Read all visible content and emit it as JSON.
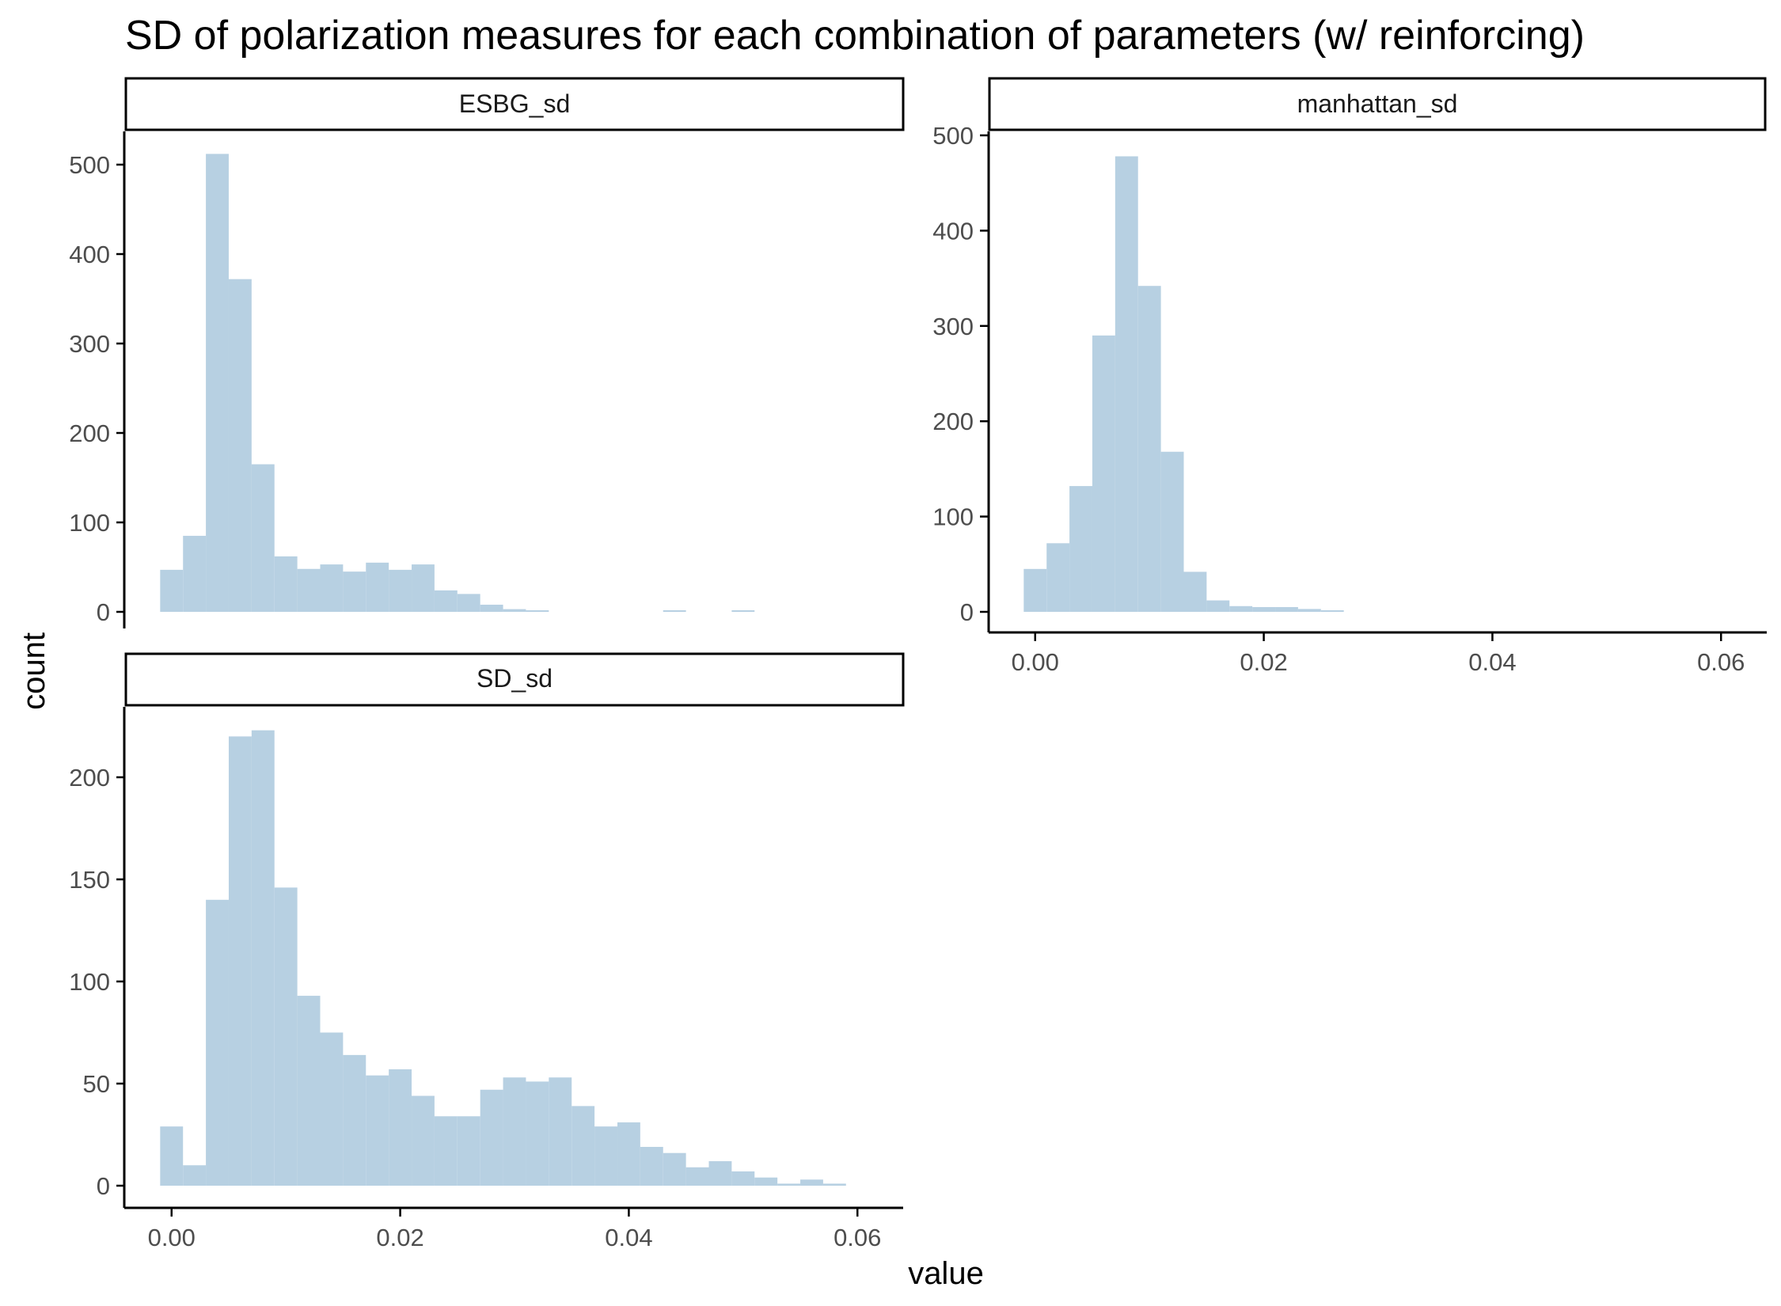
{
  "chart_data": {
    "type": "bar",
    "title": "SD of polarization measures for each combination of parameters (w/ reinforcing)",
    "xlabel": "value",
    "ylabel": "count",
    "bar_color": "#b3cde0",
    "axis_color": "#000000",
    "tick_label_color": "#4d4d4d",
    "grid": false,
    "xlim": [
      -0.004,
      0.064
    ],
    "x_ticks": [
      0.0,
      0.02,
      0.04,
      0.06
    ],
    "x_tick_labels": [
      "0.00",
      "0.02",
      "0.04",
      "0.06"
    ],
    "bin_width": 0.002,
    "bin_centers": [
      0.0,
      0.002,
      0.004,
      0.006,
      0.008,
      0.01,
      0.012,
      0.014,
      0.016,
      0.018,
      0.02,
      0.022,
      0.024,
      0.026,
      0.028,
      0.03,
      0.032,
      0.034,
      0.036,
      0.038,
      0.04,
      0.042,
      0.044,
      0.046,
      0.048,
      0.05,
      0.052,
      0.054,
      0.056,
      0.058,
      0.06
    ],
    "panels": [
      {
        "name": "ESBG_sd",
        "ylim": [
          0,
          535
        ],
        "y_ticks": [
          0,
          100,
          200,
          300,
          400,
          500
        ],
        "y_tick_labels": [
          "0",
          "100",
          "200",
          "300",
          "400",
          "500"
        ],
        "values": [
          47,
          85,
          512,
          372,
          165,
          62,
          48,
          53,
          45,
          55,
          47,
          53,
          24,
          20,
          8,
          3,
          1,
          0,
          0,
          0,
          0,
          0,
          1,
          0,
          0,
          1,
          0,
          0,
          0,
          0,
          0
        ]
      },
      {
        "name": "manhattan_sd",
        "ylim": [
          0,
          500
        ],
        "y_ticks": [
          0,
          100,
          200,
          300,
          400,
          500
        ],
        "y_tick_labels": [
          "0",
          "100",
          "200",
          "300",
          "400",
          "500"
        ],
        "values": [
          45,
          72,
          132,
          290,
          478,
          342,
          168,
          42,
          12,
          6,
          5,
          5,
          3,
          1,
          0,
          0,
          0,
          0,
          0,
          0,
          0,
          0,
          0,
          0,
          0,
          0,
          0,
          0,
          0,
          0,
          0
        ]
      },
      {
        "name": "SD_sd",
        "ylim": [
          0,
          232
        ],
        "y_ticks": [
          0,
          50,
          100,
          150,
          200
        ],
        "y_tick_labels": [
          "0",
          "50",
          "100",
          "150",
          "200"
        ],
        "values": [
          29,
          10,
          140,
          220,
          223,
          146,
          93,
          75,
          64,
          54,
          57,
          44,
          34,
          34,
          47,
          53,
          51,
          53,
          39,
          29,
          31,
          19,
          16,
          9,
          12,
          7,
          4,
          1,
          3,
          1,
          0
        ]
      }
    ]
  }
}
